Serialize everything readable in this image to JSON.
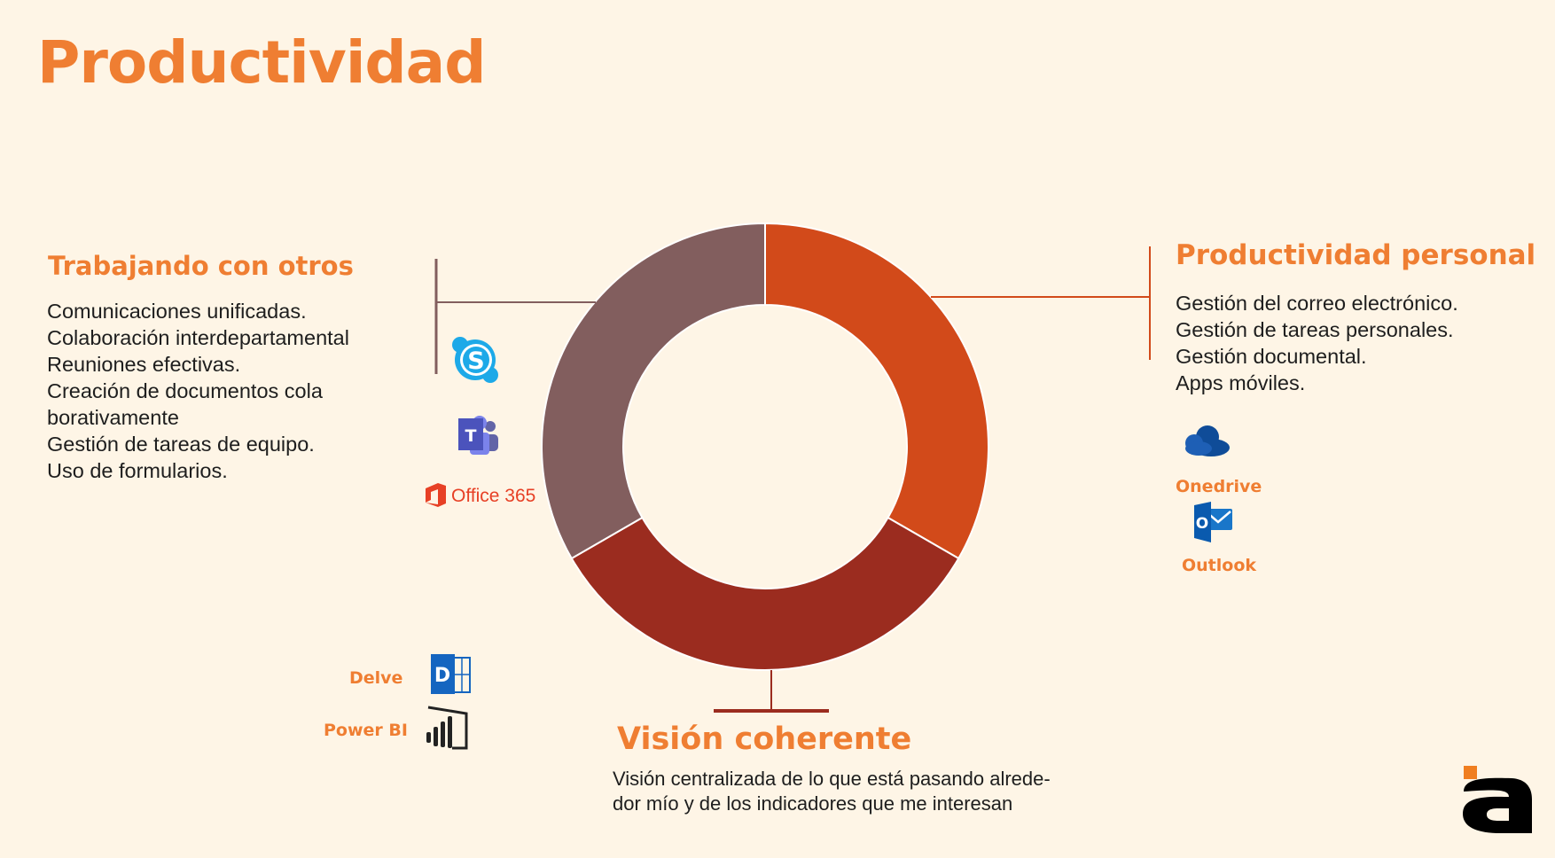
{
  "title": "Productividad",
  "chart_data": {
    "type": "pie",
    "donut": true,
    "slices": [
      {
        "name": "Productividad personal",
        "value": 33.3,
        "color": "#D24A1A"
      },
      {
        "name": "Visión coherente",
        "value": 33.3,
        "color": "#9B2C1F"
      },
      {
        "name": "Trabajando con otros",
        "value": 33.3,
        "color": "#825E5E"
      }
    ]
  },
  "trabajando": {
    "heading": "Trabajando con otros",
    "items": [
      "Comunicaciones unificadas.",
      "Colaboración interdepartamental",
      "Reuniones efectivas.",
      "Creación de documentos cola",
      "borativamente",
      "Gestión de tareas de equipo.",
      "Uso de formularios."
    ],
    "office_label": "Office 365"
  },
  "personal": {
    "heading": "Productividad personal",
    "items": [
      "Gestión del correo electrónico.",
      "Gestión de tareas personales.",
      "Gestión documental.",
      "Apps móviles."
    ],
    "apps": [
      "Onedrive",
      "Outlook"
    ]
  },
  "vision": {
    "heading": "Visión coherente",
    "lines": [
      "Visión centralizada de lo que está pasando alrede-",
      "dor mío y de los indicadores que me interesan"
    ],
    "apps": [
      "Delve",
      "Power BI"
    ]
  },
  "icons": {
    "skype": "skype-icon",
    "teams": "teams-icon",
    "office": "office365-icon",
    "onedrive": "onedrive-icon",
    "outlook": "outlook-icon",
    "delve": "delve-icon",
    "powerbi": "powerbi-icon",
    "logo": "company-logo"
  },
  "colors": {
    "accent": "#EF7E32",
    "background": "#FEF5E6",
    "connector_left": "#825E5E",
    "connector_right": "#D24A1A",
    "connector_bottom": "#9B2C1F"
  }
}
